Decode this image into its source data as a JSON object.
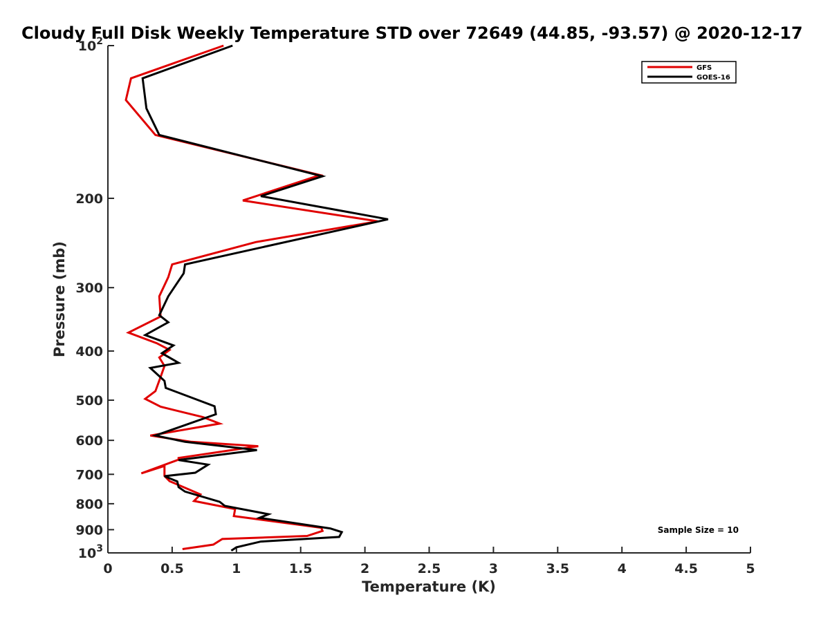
{
  "chart_data": {
    "type": "line",
    "title": "Cloudy Full Disk Weekly Temperature STD over 72649 (44.85, -93.57) @ 2020-12-17",
    "xlabel": "Temperature (K)",
    "ylabel": "Pressure (mb)",
    "xlim": [
      0,
      5
    ],
    "ylim": [
      1000,
      100
    ],
    "yscale": "log",
    "y_reversed": true,
    "xticks": [
      "0",
      "0.5",
      "1",
      "1.5",
      "2",
      "2.5",
      "3",
      "3.5",
      "4",
      "4.5",
      "5"
    ],
    "xtick_values": [
      0,
      0.5,
      1,
      1.5,
      2,
      2.5,
      3,
      3.5,
      4,
      4.5,
      5
    ],
    "yticks": [
      {
        "value": 100,
        "base": "10",
        "exp": "2"
      },
      {
        "value": 200,
        "label": "200"
      },
      {
        "value": 300,
        "label": "300"
      },
      {
        "value": 400,
        "label": "400"
      },
      {
        "value": 500,
        "label": "500"
      },
      {
        "value": 600,
        "label": "600"
      },
      {
        "value": 700,
        "label": "700"
      },
      {
        "value": 800,
        "label": "800"
      },
      {
        "value": 900,
        "label": "900"
      },
      {
        "value": 1000,
        "base": "10",
        "exp": "3"
      }
    ],
    "grid": false,
    "legend_position": "top-right",
    "annotation": "Sample Size = 10",
    "series": [
      {
        "name": "GFS",
        "color": "#e00000",
        "x": [
          0.9,
          0.18,
          0.14,
          0.37,
          1.65,
          1.05,
          2.1,
          1.15,
          0.5,
          0.47,
          0.4,
          0.41,
          0.16,
          0.38,
          0.48,
          0.4,
          0.44,
          0.41,
          0.37,
          0.29,
          0.41,
          0.74,
          0.87,
          0.33,
          0.65,
          1.17,
          0.55,
          0.55,
          0.26,
          0.44,
          0.44,
          0.48,
          0.72,
          0.67,
          0.99,
          0.98,
          1.66,
          1.67,
          1.55,
          0.89,
          0.82,
          0.58
        ],
        "y": [
          100,
          116,
          128,
          150,
          180,
          202,
          222,
          244,
          270,
          286,
          312,
          342,
          368,
          386,
          398,
          412,
          428,
          450,
          480,
          497,
          515,
          540,
          556,
          587,
          604,
          616,
          650,
          655,
          697,
          674,
          705,
          722,
          767,
          790,
          820,
          846,
          892,
          905,
          926,
          939,
          963,
          983
        ]
      },
      {
        "name": "GOES-16",
        "color": "#000000",
        "x": [
          0.97,
          0.27,
          0.3,
          0.4,
          1.67,
          1.19,
          2.18,
          0.6,
          0.59,
          0.47,
          0.4,
          0.47,
          0.29,
          0.51,
          0.42,
          0.55,
          0.33,
          0.44,
          0.45,
          0.83,
          0.84,
          0.37,
          0.6,
          1.16,
          0.55,
          0.78,
          0.68,
          0.44,
          0.54,
          0.55,
          0.6,
          0.87,
          0.91,
          1.25,
          1.18,
          1.73,
          1.82,
          1.8,
          1.19,
          1.0,
          0.96
        ],
        "y": [
          100,
          116,
          133,
          150,
          181,
          198,
          220,
          270,
          281,
          312,
          340,
          351,
          372,
          390,
          404,
          422,
          432,
          458,
          473,
          514,
          533,
          587,
          604,
          627,
          656,
          670,
          695,
          706,
          723,
          742,
          757,
          793,
          808,
          839,
          853,
          895,
          910,
          930,
          950,
          975,
          990
        ]
      }
    ]
  }
}
